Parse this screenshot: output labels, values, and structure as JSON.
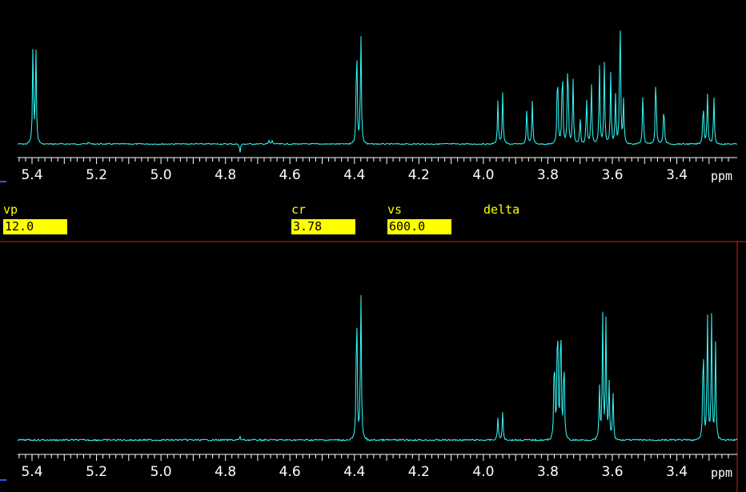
{
  "colors": {
    "background": "#000000",
    "spectrum": "#33ffff",
    "axis": "#ffffff",
    "cursor": "#ff3333",
    "param_label": "#ffff00",
    "param_field_bg": "#ffff00",
    "param_field_text": "#000000",
    "frame_accent": "#3355ff"
  },
  "params": {
    "vp": {
      "label": "vp",
      "value": "12.0"
    },
    "cr": {
      "label": "cr",
      "value": "3.78"
    },
    "vs": {
      "label": "vs",
      "value": "600.0"
    },
    "delta": {
      "label": "delta"
    }
  },
  "axis": {
    "unit": "ppm",
    "ticks": [
      "5.4",
      "5.2",
      "5.0",
      "4.8",
      "4.6",
      "4.4",
      "4.2",
      "4.0",
      "3.8",
      "3.6",
      "3.4"
    ]
  },
  "chart_data": [
    {
      "type": "line",
      "xlabel": "ppm",
      "xlim": [
        5.45,
        3.25
      ],
      "x_reversed": true,
      "ticks": [
        5.4,
        5.2,
        5.0,
        4.8,
        4.6,
        4.4,
        4.2,
        4.0,
        3.8,
        3.6,
        3.4
      ],
      "peaks": [
        {
          "ppm": 5.397,
          "height": 0.87
        },
        {
          "ppm": 5.388,
          "height": 0.84
        },
        {
          "ppm": 5.225,
          "height": 0.02
        },
        {
          "ppm": 4.755,
          "height": -0.08
        },
        {
          "ppm": 4.665,
          "height": 0.03
        },
        {
          "ppm": 4.655,
          "height": 0.03
        },
        {
          "ppm": 4.393,
          "height": 0.95
        },
        {
          "ppm": 4.38,
          "height": 0.97
        },
        {
          "ppm": 3.955,
          "height": 0.37
        },
        {
          "ppm": 3.94,
          "height": 0.44
        },
        {
          "ppm": 3.865,
          "height": 0.33
        },
        {
          "ppm": 3.848,
          "height": 0.38
        },
        {
          "ppm": 3.77,
          "height": 0.72
        },
        {
          "ppm": 3.755,
          "height": 0.74
        },
        {
          "ppm": 3.738,
          "height": 0.82
        },
        {
          "ppm": 3.722,
          "height": 0.58
        },
        {
          "ppm": 3.7,
          "height": 0.25
        },
        {
          "ppm": 3.68,
          "height": 0.41
        },
        {
          "ppm": 3.665,
          "height": 0.55
        },
        {
          "ppm": 3.64,
          "height": 0.69
        },
        {
          "ppm": 3.625,
          "height": 0.7
        },
        {
          "ppm": 3.605,
          "height": 0.62
        },
        {
          "ppm": 3.59,
          "height": 0.42
        },
        {
          "ppm": 3.576,
          "height": 1.2
        },
        {
          "ppm": 3.565,
          "height": 0.38
        },
        {
          "ppm": 3.505,
          "height": 0.47
        },
        {
          "ppm": 3.465,
          "height": 0.64
        },
        {
          "ppm": 3.44,
          "height": 0.37
        },
        {
          "ppm": 3.318,
          "height": 0.39
        },
        {
          "ppm": 3.305,
          "height": 0.46
        },
        {
          "ppm": 3.285,
          "height": 0.41
        }
      ]
    },
    {
      "type": "line",
      "xlabel": "ppm",
      "xlim": [
        5.45,
        3.25
      ],
      "x_reversed": true,
      "ticks": [
        5.4,
        5.2,
        5.0,
        4.8,
        4.6,
        4.4,
        4.2,
        4.0,
        3.8,
        3.6,
        3.4
      ],
      "peaks": [
        {
          "ppm": 4.755,
          "height": 0.02
        },
        {
          "ppm": 4.393,
          "height": 0.97
        },
        {
          "ppm": 4.38,
          "height": 0.99
        },
        {
          "ppm": 3.955,
          "height": 0.15
        },
        {
          "ppm": 3.94,
          "height": 0.18
        },
        {
          "ppm": 3.78,
          "height": 0.63
        },
        {
          "ppm": 3.77,
          "height": 0.9
        },
        {
          "ppm": 3.76,
          "height": 0.88
        },
        {
          "ppm": 3.75,
          "height": 0.6
        },
        {
          "ppm": 3.64,
          "height": 0.34
        },
        {
          "ppm": 3.63,
          "height": 0.82
        },
        {
          "ppm": 3.62,
          "height": 0.78
        },
        {
          "ppm": 3.61,
          "height": 0.37
        },
        {
          "ppm": 3.598,
          "height": 0.33
        },
        {
          "ppm": 3.318,
          "height": 0.71
        },
        {
          "ppm": 3.305,
          "height": 0.86
        },
        {
          "ppm": 3.292,
          "height": 0.81
        },
        {
          "ppm": 3.28,
          "height": 0.65
        }
      ]
    }
  ]
}
